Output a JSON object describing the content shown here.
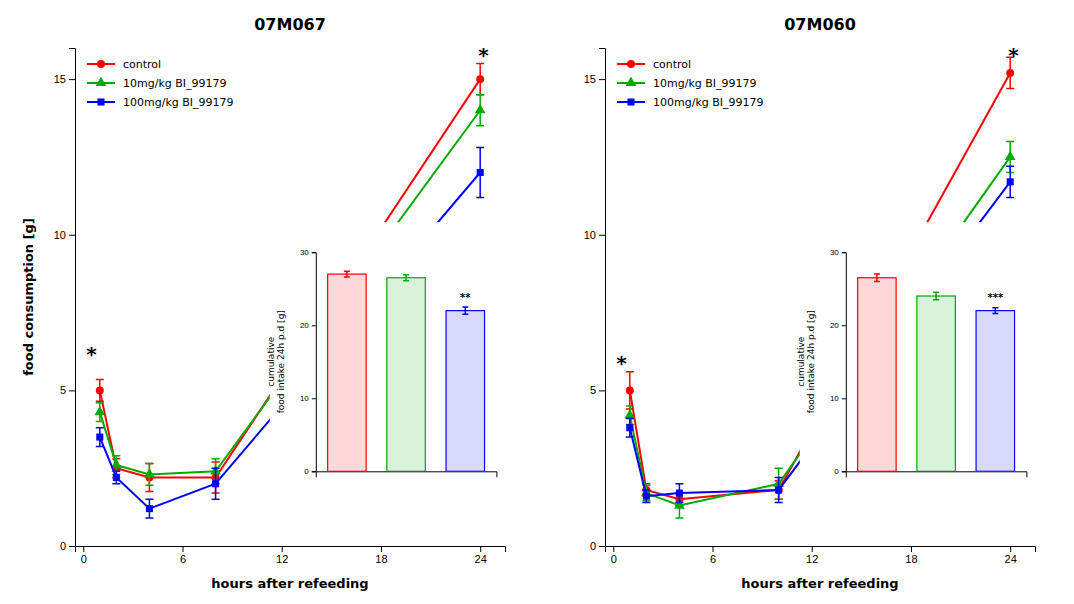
{
  "chart_data": [
    {
      "type": "line",
      "title": "07M067",
      "xlabel": "hours after refeeding",
      "ylabel": "food consumption [g]",
      "x": [
        1,
        2,
        4,
        8,
        24
      ],
      "series": [
        {
          "name": "control",
          "color": "#ff0000",
          "marker": "circle",
          "values": [
            5.0,
            2.5,
            2.2,
            2.2,
            15.0
          ],
          "errors": [
            0.35,
            0.3,
            0.45,
            0.5,
            0.5
          ]
        },
        {
          "name": "10mg/kg BI_99179",
          "color": "#00aa00",
          "marker": "triangle",
          "values": [
            4.3,
            2.6,
            2.3,
            2.4,
            14.0
          ],
          "errors": [
            0.3,
            0.3,
            0.35,
            0.4,
            0.5
          ]
        },
        {
          "name": "100mg/kg BI_99179",
          "color": "#0000ff",
          "marker": "square",
          "values": [
            3.5,
            2.2,
            1.2,
            2.0,
            12.0
          ],
          "errors": [
            0.3,
            0.2,
            0.3,
            0.5,
            0.8
          ]
        }
      ],
      "xlim": [
        -0.5,
        25.5
      ],
      "xticks": [
        0,
        6,
        12,
        18,
        24
      ],
      "ylim": [
        0,
        16
      ],
      "yticks": [
        0,
        5,
        10,
        15
      ],
      "grid": false,
      "legend": "upper left",
      "annotations": [
        {
          "text": "*",
          "x": 0.5,
          "y": 6.2
        },
        {
          "text": "*",
          "x": 24.2,
          "y": 15.8
        }
      ]
    },
    {
      "type": "bar",
      "ylabel": "cumulative\nfood intake 24h p.d [g]",
      "categories": [
        null,
        null,
        null
      ],
      "values": [
        27.0,
        26.5,
        22.0
      ],
      "errors": [
        0.4,
        0.4,
        0.5
      ],
      "colors": [
        "#ff0000",
        "#00aa00",
        "#0000ff"
      ],
      "ylim": [
        0,
        30
      ],
      "yticks": [
        0,
        10,
        20,
        30
      ],
      "tick_labels": "y",
      "grid": false,
      "annotations": [
        {
          "text": "**",
          "x": 2,
          "y": 23.3
        }
      ]
    },
    {
      "type": "line",
      "title": "07M060",
      "xlabel": "hours after refeeding",
      "x": [
        1,
        2,
        4,
        10,
        24
      ],
      "series": [
        {
          "name": "control",
          "color": "#ff0000",
          "marker": "circle",
          "values": [
            5.0,
            1.8,
            1.5,
            1.8,
            15.2
          ],
          "errors": [
            0.6,
            0.2,
            0.2,
            0.3,
            0.5
          ]
        },
        {
          "name": "10mg/kg BI_99179",
          "color": "#00aa00",
          "marker": "triangle",
          "values": [
            4.2,
            1.7,
            1.3,
            2.0,
            12.5
          ],
          "errors": [
            0.3,
            0.25,
            0.4,
            0.5,
            0.5
          ]
        },
        {
          "name": "100mg/kg BI_99179",
          "color": "#0000ff",
          "marker": "square",
          "values": [
            3.8,
            1.6,
            1.7,
            1.8,
            11.7
          ],
          "errors": [
            0.3,
            0.2,
            0.3,
            0.4,
            0.5
          ]
        }
      ],
      "xlim": [
        -0.5,
        25.5
      ],
      "xticks": [
        0,
        6,
        12,
        18,
        24
      ],
      "ylim": [
        0,
        16
      ],
      "yticks": [
        0,
        5,
        10,
        15
      ],
      "grid": false,
      "legend": "upper left",
      "annotations": [
        {
          "text": "*",
          "x": 0.5,
          "y": 5.9
        },
        {
          "text": "*",
          "x": 24.2,
          "y": 15.8
        }
      ]
    },
    {
      "type": "bar",
      "ylabel": "cumulative\nfood intake 24h p.d [g]",
      "categories": [
        null,
        null,
        null
      ],
      "values": [
        26.5,
        24.0,
        22.0
      ],
      "errors": [
        0.5,
        0.5,
        0.4
      ],
      "colors": [
        "#ff0000",
        "#00aa00",
        "#0000ff"
      ],
      "ylim": [
        0,
        30
      ],
      "yticks": [
        0,
        10,
        20,
        30
      ],
      "tick_labels": "y",
      "grid": false,
      "annotations": [
        {
          "text": "***",
          "x": 2,
          "y": 23.3
        }
      ]
    }
  ]
}
